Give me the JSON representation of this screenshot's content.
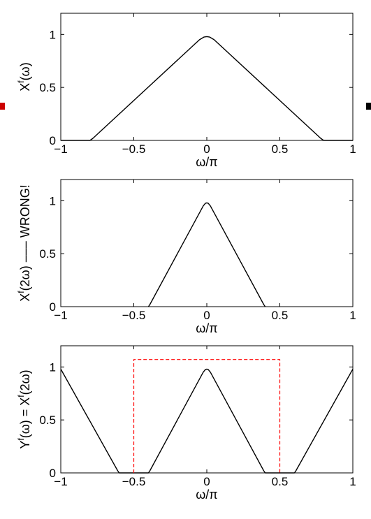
{
  "chart_data": [
    {
      "type": "line",
      "xlabel": "ω/π",
      "ylabel": {
        "base": "X",
        "sup": "f",
        "rest": "(ω)"
      },
      "xlim": [
        -1,
        1
      ],
      "ylim": [
        0,
        1.2
      ],
      "xticks": [
        -1,
        -0.5,
        0,
        0.5,
        1
      ],
      "xtick_labels": [
        "−1",
        "−0.5",
        "0",
        "0.5",
        "1"
      ],
      "yticks": [
        0,
        0.5,
        1
      ],
      "ytick_labels": [
        "0",
        "0.5",
        "1"
      ],
      "series": [
        {
          "color": "#000000",
          "style": "solid",
          "x": [
            -1,
            -0.8,
            -0.78,
            -0.05,
            -0.02,
            0,
            0.02,
            0.05,
            0.78,
            0.8,
            1
          ],
          "y": [
            0,
            0,
            0.02,
            0.95,
            0.975,
            0.98,
            0.975,
            0.95,
            0.02,
            0,
            0
          ]
        }
      ]
    },
    {
      "type": "line",
      "xlabel": "ω/π",
      "ylabel": {
        "base": "X",
        "sup": "f",
        "rest": "(2ω) ––– WRONG!"
      },
      "xlim": [
        -1,
        1
      ],
      "ylim": [
        0,
        1.2
      ],
      "xticks": [
        -1,
        -0.5,
        0,
        0.5,
        1
      ],
      "xtick_labels": [
        "−1",
        "−0.5",
        "0",
        "0.5",
        "1"
      ],
      "yticks": [
        0,
        0.5,
        1
      ],
      "ytick_labels": [
        "0",
        "0.5",
        "1"
      ],
      "series": [
        {
          "color": "#000000",
          "style": "solid",
          "x": [
            -0.4,
            -0.39,
            -0.025,
            -0.01,
            0,
            0.01,
            0.025,
            0.39,
            0.4
          ],
          "y": [
            0,
            0.02,
            0.95,
            0.975,
            0.98,
            0.975,
            0.95,
            0.02,
            0
          ]
        }
      ]
    },
    {
      "type": "line",
      "xlabel": "ω/π",
      "ylabel": {
        "base": "Y",
        "sup": "f",
        "rest": "(ω) = X",
        "sup2": "f",
        "rest2": "(2ω)"
      },
      "xlim": [
        -1,
        1
      ],
      "ylim": [
        0,
        1.2
      ],
      "xticks": [
        -1,
        -0.5,
        0,
        0.5,
        1
      ],
      "xtick_labels": [
        "−1",
        "−0.5",
        "0",
        "0.5",
        "1"
      ],
      "yticks": [
        0,
        0.5,
        1
      ],
      "ytick_labels": [
        "0",
        "0.5",
        "1"
      ],
      "series": [
        {
          "color": "#000000",
          "style": "solid",
          "x": [
            -1,
            -0.61,
            -0.6,
            -0.4,
            -0.39,
            -0.025,
            -0.01,
            0,
            0.01,
            0.025,
            0.39,
            0.4,
            0.6,
            0.61,
            1
          ],
          "y": [
            0.98,
            0.02,
            0,
            0,
            0.02,
            0.95,
            0.975,
            0.98,
            0.975,
            0.95,
            0.02,
            0,
            0,
            0.02,
            0.98
          ]
        },
        {
          "color": "#ff0000",
          "style": "dashed",
          "x": [
            -0.5,
            -0.5,
            0.5,
            0.5
          ],
          "y": [
            0,
            1.07,
            1.07,
            0
          ]
        }
      ]
    }
  ],
  "markers": {
    "left_color": "#cc0000",
    "right_color": "#000000"
  }
}
